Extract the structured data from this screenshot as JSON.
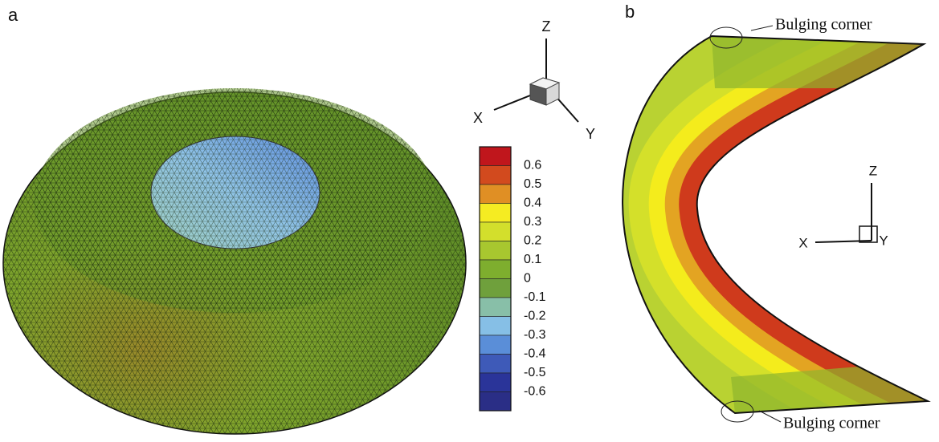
{
  "panel_a": {
    "label": "a",
    "axes": {
      "z": "Z",
      "x": "X",
      "y": "Y"
    },
    "colorbar": {
      "labels": [
        "0.6",
        "0.5",
        "0.4",
        "0.3",
        "0.2",
        "0.1",
        "0",
        "-0.1",
        "-0.2",
        "-0.3",
        "-0.4",
        "-0.5",
        "-0.6"
      ]
    }
  },
  "panel_b": {
    "label": "b",
    "annotations": [
      "Bulging corner",
      "Bulging corner"
    ],
    "axes": {
      "z": "Z",
      "x": "X",
      "y": "Y"
    }
  }
}
